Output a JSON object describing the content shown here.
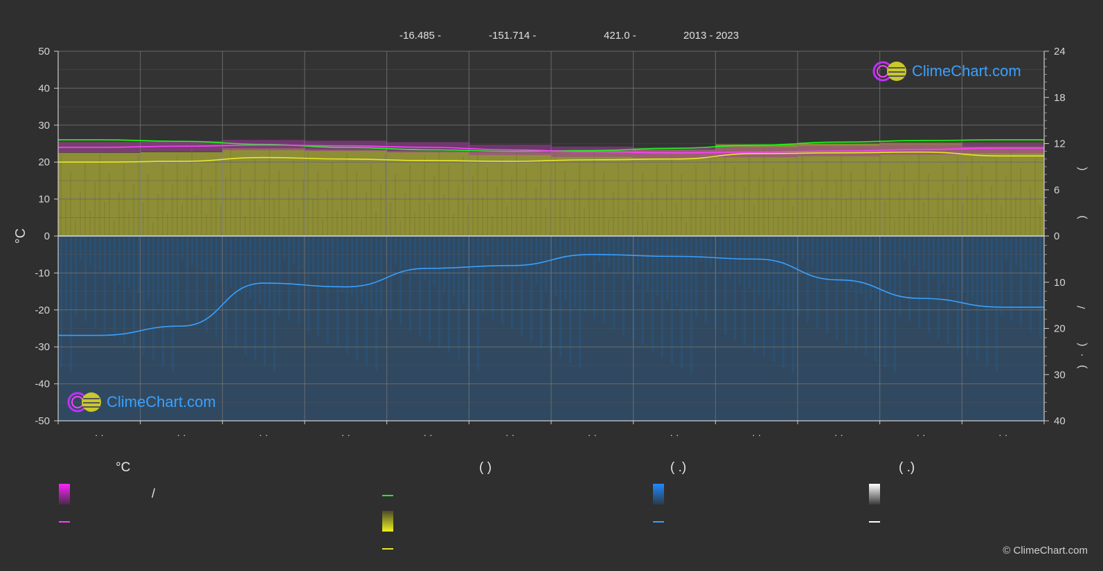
{
  "header": {
    "lat": "-16.485 -",
    "lon": "-151.714 -",
    "elev": "421.0 -",
    "years": "2013 - 2023"
  },
  "colors": {
    "background": "#2f2f2f",
    "sunshine": "#c7c73a",
    "daylight": "#15ff15",
    "temp_mean": "#ff40ff",
    "sunshine_mean": "#e8e82a",
    "precip": "#2a86d6",
    "precip_mean": "#3aa0ff"
  },
  "logo": {
    "text": "ClimeChart.com"
  },
  "copyright": "© ClimeChart.com",
  "chart_data": {
    "type": "line",
    "months": 12,
    "left_axis": {
      "label": "°C",
      "ticks": [
        50,
        40,
        30,
        20,
        10,
        0,
        -10,
        -20,
        -30,
        -40,
        -50
      ],
      "range": [
        -50,
        50
      ]
    },
    "right_axis_hours": {
      "ticks": [
        24,
        18,
        12,
        6,
        0
      ],
      "range": [
        0,
        24
      ]
    },
    "right_axis_precip": {
      "ticks": [
        10,
        20,
        30,
        40
      ],
      "range": [
        0,
        40
      ]
    },
    "right_labels": [
      "(",
      ")",
      "/",
      "(",
      "·",
      ")"
    ],
    "x_tick_labels": [
      "· ·",
      "· ·",
      "· ·",
      "· ·",
      "· ·",
      "· ·",
      "· ·",
      "· ·",
      "· ·",
      "· ·",
      "· ·",
      "· ·"
    ],
    "series": [
      {
        "key": "daylight",
        "unit": "hours",
        "values": [
          12.5,
          12.3,
          11.9,
          11.5,
          11.2,
          11.0,
          11.1,
          11.4,
          11.8,
          12.2,
          12.4,
          12.5
        ]
      },
      {
        "key": "temp_mean",
        "unit": "°C",
        "values": [
          24.0,
          24.3,
          24.6,
          24.4,
          24.0,
          23.3,
          22.8,
          22.5,
          22.7,
          23.0,
          23.4,
          23.8
        ]
      },
      {
        "key": "sunshine_mean",
        "unit": "hours",
        "values": [
          9.6,
          9.7,
          10.2,
          10.0,
          9.8,
          9.7,
          9.9,
          10.0,
          10.7,
          10.8,
          10.9,
          10.4
        ]
      },
      {
        "key": "precip_mean",
        "unit": "mm",
        "values": [
          21.5,
          19.5,
          10.2,
          11.0,
          7.0,
          6.4,
          4.0,
          4.4,
          5.0,
          9.5,
          13.5,
          15.4
        ]
      }
    ]
  },
  "legend": {
    "col1": {
      "head": "°C",
      "slash": "/"
    },
    "col2": {
      "head": "(          )"
    },
    "col3": {
      "head": "(    .)"
    },
    "col4": {
      "head": "(    .)"
    }
  }
}
